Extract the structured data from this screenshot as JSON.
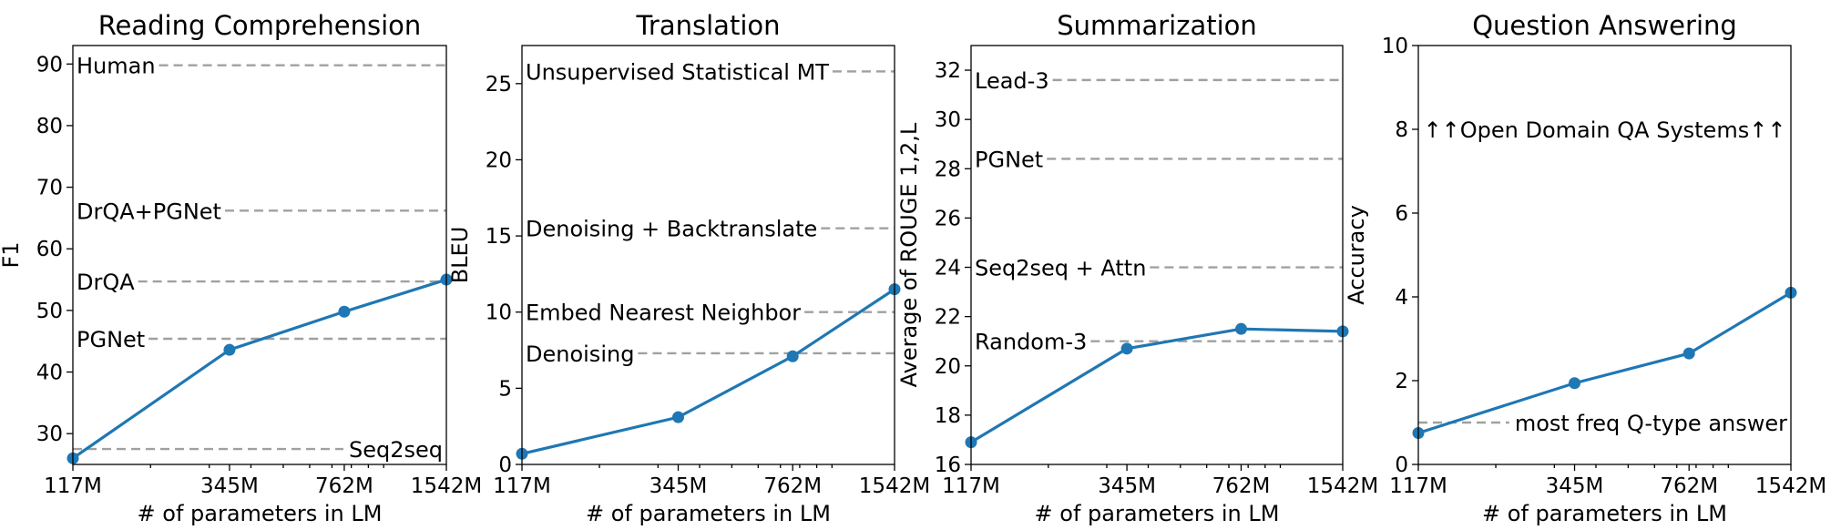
{
  "colors": {
    "series": "#1f77b4",
    "reference": "#a0a0a0",
    "axis": "#000000"
  },
  "chart_data": [
    {
      "type": "line",
      "title": "Reading Comprehension",
      "xlabel": "# of parameters in LM",
      "ylabel": "F1",
      "x_scale": "log",
      "x_tick_labels": [
        "117M",
        "345M",
        "762M",
        "1542M"
      ],
      "x": [
        117,
        345,
        762,
        1542
      ],
      "ylim": [
        25,
        93
      ],
      "y_ticks": [
        30,
        40,
        50,
        60,
        70,
        80,
        90
      ],
      "series": [
        {
          "values": [
            26.0,
            43.6,
            49.8,
            55.0
          ]
        }
      ],
      "references": [
        {
          "label": "Human",
          "value": 89.8,
          "label_side": "left"
        },
        {
          "label": "DrQA+PGNet",
          "value": 66.2,
          "label_side": "left"
        },
        {
          "label": "DrQA",
          "value": 54.7,
          "label_side": "left"
        },
        {
          "label": "PGNet",
          "value": 45.4,
          "label_side": "left"
        },
        {
          "label": "Seq2seq",
          "value": 27.5,
          "label_side": "right"
        }
      ]
    },
    {
      "type": "line",
      "title": "Translation",
      "xlabel": "# of parameters in LM",
      "ylabel": "BLEU",
      "x_scale": "log",
      "x_tick_labels": [
        "117M",
        "345M",
        "762M",
        "1542M"
      ],
      "x": [
        117,
        345,
        762,
        1542
      ],
      "ylim": [
        0,
        27.5
      ],
      "y_ticks": [
        0,
        5,
        10,
        15,
        20,
        25
      ],
      "series": [
        {
          "values": [
            0.7,
            3.1,
            7.1,
            11.5
          ]
        }
      ],
      "references": [
        {
          "label": "Unsupervised Statistical MT",
          "value": 25.8,
          "label_side": "left"
        },
        {
          "label": "Denoising + Backtranslate",
          "value": 15.5,
          "label_side": "left"
        },
        {
          "label": "Embed Nearest Neighbor",
          "value": 10.0,
          "label_side": "left"
        },
        {
          "label": "Denoising",
          "value": 7.3,
          "label_side": "left"
        }
      ]
    },
    {
      "type": "line",
      "title": "Summarization",
      "xlabel": "# of parameters in LM",
      "ylabel": "Average of ROUGE 1,2,L",
      "x_scale": "log",
      "x_tick_labels": [
        "117M",
        "345M",
        "762M",
        "1542M"
      ],
      "x": [
        117,
        345,
        762,
        1542
      ],
      "ylim": [
        16,
        33
      ],
      "y_ticks": [
        16,
        18,
        20,
        22,
        24,
        26,
        28,
        30,
        32
      ],
      "series": [
        {
          "values": [
            16.9,
            20.7,
            21.5,
            21.4
          ]
        }
      ],
      "references": [
        {
          "label": "Lead-3",
          "value": 31.6,
          "label_side": "left"
        },
        {
          "label": "PGNet",
          "value": 28.4,
          "label_side": "left"
        },
        {
          "label": "Seq2seq + Attn",
          "value": 24.0,
          "label_side": "left"
        },
        {
          "label": "Random-3",
          "value": 21.0,
          "label_side": "left"
        }
      ]
    },
    {
      "type": "line",
      "title": "Question Answering",
      "xlabel": "# of parameters in LM",
      "ylabel": "Accuracy",
      "x_scale": "log",
      "x_tick_labels": [
        "117M",
        "345M",
        "762M",
        "1542M"
      ],
      "x": [
        117,
        345,
        762,
        1542
      ],
      "ylim": [
        0,
        10
      ],
      "y_ticks": [
        0,
        2,
        4,
        6,
        8,
        10
      ],
      "series": [
        {
          "values": [
            0.75,
            1.94,
            2.65,
            4.1
          ]
        }
      ],
      "references": [
        {
          "label": "most freq Q-type answer",
          "value": 1.0,
          "label_side": "right"
        }
      ],
      "annotations": [
        {
          "text": "↑↑Open Domain QA Systems↑↑",
          "y": 8.0
        }
      ]
    }
  ]
}
